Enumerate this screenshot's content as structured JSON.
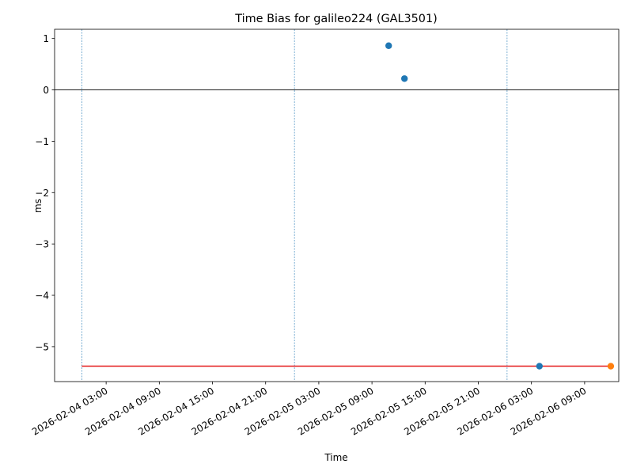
{
  "chart_data": {
    "type": "scatter",
    "title": "Time Bias for galileo224 (GAL3501)",
    "x_label": "Time",
    "y_label": "ms",
    "xlim": [
      "2026-02-03 21:11",
      "2026-02-06 12:51"
    ],
    "xticks": [
      "2026-02-04 03:00",
      "2026-02-04 09:00",
      "2026-02-04 15:00",
      "2026-02-04 21:00",
      "2026-02-05 03:00",
      "2026-02-05 09:00",
      "2026-02-05 15:00",
      "2026-02-05 21:00",
      "2026-02-06 03:00",
      "2026-02-06 09:00"
    ],
    "ylim": [
      -5.68,
      1.18
    ],
    "yticks": [
      1,
      0,
      {
        "value": -1,
        "label": "−1"
      },
      {
        "value": -2,
        "label": "−2"
      },
      {
        "value": -3,
        "label": "−3"
      },
      {
        "value": -4,
        "label": "−4"
      },
      {
        "value": -5,
        "label": "−5"
      }
    ],
    "hline": 0,
    "vlines": [
      "2026-02-04 00:15",
      "2026-02-05 00:15",
      "2026-02-06 00:15"
    ],
    "vline_color": "#1f77b4",
    "series": [
      {
        "type": "scatter",
        "color": "#1f77b4",
        "x": [
          "2026-02-05 10:53",
          "2026-02-05 12:40",
          "2026-02-06 03:54"
        ],
        "values": [
          0.86,
          0.22,
          -5.38
        ]
      },
      {
        "type": "scatter",
        "color": "#ff7f0e",
        "x": [
          "2026-02-06 11:57"
        ],
        "values": [
          -5.38
        ]
      },
      {
        "type": "line",
        "color": "#e41a1c",
        "x": [
          "2026-02-04 00:15",
          "2026-02-06 11:57"
        ],
        "values": [
          -5.38,
          -5.38
        ]
      }
    ]
  }
}
